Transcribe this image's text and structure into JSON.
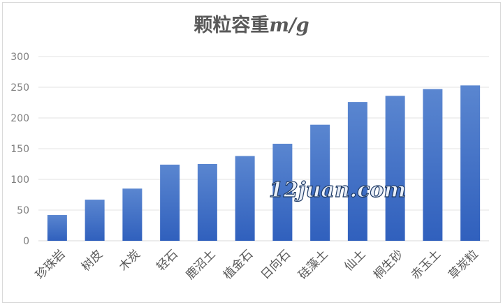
{
  "chart_data": {
    "type": "bar",
    "title": "颗粒容重m/g",
    "title_main": "颗粒容重",
    "title_unit": "m/g",
    "categories": [
      "珍珠岩",
      "树皮",
      "木炭",
      "轻石",
      "鹿沼土",
      "植金石",
      "日向石",
      "硅藻土",
      "仙土",
      "桐生砂",
      "赤玉土",
      "草炭粒"
    ],
    "values": [
      42,
      67,
      85,
      124,
      125,
      138,
      158,
      189,
      226,
      236,
      247,
      253
    ],
    "ylim": [
      0,
      300
    ],
    "yticks": [
      0,
      50,
      100,
      150,
      200,
      250,
      300
    ],
    "grid": true,
    "bar_color": "#4472c4",
    "xlabel": "",
    "ylabel": ""
  },
  "watermark": "12juan.com"
}
